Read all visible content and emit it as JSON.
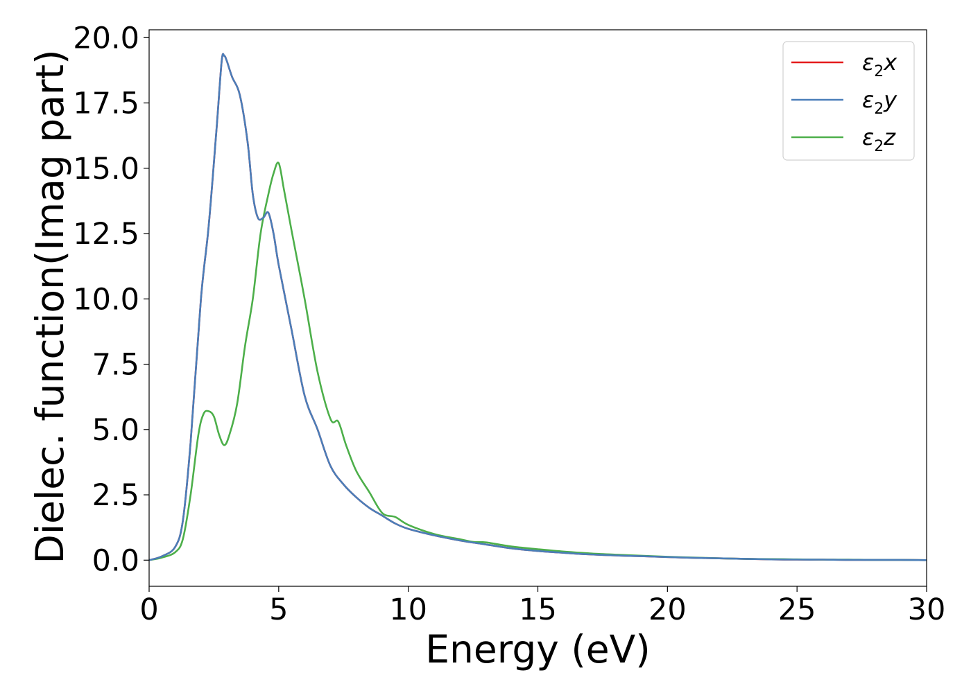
{
  "chart_data": {
    "type": "line",
    "title": "",
    "xlabel": "Energy (eV)",
    "ylabel": "Dielec. function(Imag part)",
    "xlim": [
      0,
      30
    ],
    "ylim": [
      -1,
      20.3
    ],
    "xticks": [
      0,
      5,
      10,
      15,
      20,
      25,
      30
    ],
    "xtick_labels": [
      "0",
      "5",
      "10",
      "15",
      "20",
      "25",
      "30"
    ],
    "yticks": [
      0,
      2.5,
      5,
      7.5,
      10,
      12.5,
      15,
      17.5,
      20
    ],
    "ytick_labels": [
      "0.0",
      "2.5",
      "5.0",
      "7.5",
      "10.0",
      "12.5",
      "15.0",
      "17.5",
      "20.0"
    ],
    "grid": false,
    "legend_position": "top-right",
    "series": [
      {
        "name": "ε2x",
        "legend_main": "ε",
        "legend_sub": "2",
        "legend_tail": "x",
        "color": "#e41a1c",
        "x": [
          0,
          0.5,
          1.0,
          1.3,
          1.6,
          2.0,
          2.3,
          2.6,
          2.8,
          2.9,
          3.0,
          3.2,
          3.5,
          3.8,
          4.0,
          4.2,
          4.4,
          4.6,
          4.8,
          5.0,
          5.5,
          6.0,
          6.5,
          7.0,
          7.5,
          8.0,
          8.5,
          9.0,
          9.5,
          10,
          11,
          12,
          13,
          14,
          15,
          16,
          17,
          18,
          19,
          20,
          21,
          22,
          23,
          24,
          25,
          26,
          27,
          28,
          29,
          30
        ],
        "values": [
          0,
          0.15,
          0.5,
          1.5,
          4.5,
          10.0,
          12.8,
          16.5,
          19.1,
          19.3,
          19.1,
          18.5,
          17.8,
          16.0,
          14.0,
          13.1,
          13.1,
          13.3,
          12.5,
          11.3,
          8.8,
          6.3,
          5.0,
          3.6,
          2.9,
          2.4,
          2.0,
          1.7,
          1.4,
          1.2,
          0.95,
          0.75,
          0.6,
          0.45,
          0.35,
          0.28,
          0.22,
          0.18,
          0.15,
          0.12,
          0.09,
          0.07,
          0.05,
          0.03,
          0.02,
          0.02,
          0.01,
          0.01,
          0.01,
          0.0
        ]
      },
      {
        "name": "ε2y",
        "legend_main": "ε",
        "legend_sub": "2",
        "legend_tail": "y",
        "color": "#4a7eb9",
        "x": [
          0,
          0.5,
          1.0,
          1.3,
          1.6,
          2.0,
          2.3,
          2.6,
          2.8,
          2.9,
          3.0,
          3.2,
          3.5,
          3.8,
          4.0,
          4.2,
          4.4,
          4.6,
          4.8,
          5.0,
          5.5,
          6.0,
          6.5,
          7.0,
          7.5,
          8.0,
          8.5,
          9.0,
          9.5,
          10,
          11,
          12,
          13,
          14,
          15,
          16,
          17,
          18,
          19,
          20,
          21,
          22,
          23,
          24,
          25,
          26,
          27,
          28,
          29,
          30
        ],
        "values": [
          0,
          0.15,
          0.5,
          1.5,
          4.5,
          10.0,
          12.8,
          16.5,
          19.1,
          19.3,
          19.1,
          18.5,
          17.8,
          16.0,
          14.0,
          13.1,
          13.1,
          13.3,
          12.5,
          11.3,
          8.8,
          6.3,
          5.0,
          3.6,
          2.9,
          2.4,
          2.0,
          1.7,
          1.4,
          1.2,
          0.95,
          0.75,
          0.6,
          0.45,
          0.35,
          0.28,
          0.22,
          0.18,
          0.15,
          0.12,
          0.09,
          0.07,
          0.05,
          0.03,
          0.02,
          0.02,
          0.01,
          0.01,
          0.01,
          0.0
        ]
      },
      {
        "name": "ε2z",
        "legend_main": "ε",
        "legend_sub": "2",
        "legend_tail": "z",
        "color": "#4daf4a",
        "x": [
          0,
          0.5,
          1.0,
          1.3,
          1.6,
          1.9,
          2.1,
          2.3,
          2.5,
          2.7,
          2.9,
          3.1,
          3.4,
          3.7,
          4.0,
          4.3,
          4.6,
          4.8,
          5.0,
          5.2,
          5.5,
          6.0,
          6.5,
          7.0,
          7.3,
          7.6,
          8.0,
          8.5,
          9.0,
          9.5,
          10,
          11,
          12,
          12.5,
          13,
          14,
          15,
          16,
          17,
          18,
          19,
          20,
          21,
          22,
          23,
          24,
          25,
          26,
          27,
          28,
          29,
          30
        ],
        "values": [
          0,
          0.1,
          0.3,
          0.8,
          2.5,
          4.8,
          5.6,
          5.7,
          5.5,
          4.8,
          4.4,
          4.8,
          6.0,
          8.2,
          10.0,
          12.5,
          14.0,
          14.8,
          15.2,
          14.2,
          12.6,
          10.0,
          7.2,
          5.4,
          5.3,
          4.4,
          3.4,
          2.6,
          1.8,
          1.65,
          1.35,
          1.0,
          0.8,
          0.7,
          0.68,
          0.52,
          0.42,
          0.33,
          0.26,
          0.21,
          0.17,
          0.13,
          0.1,
          0.07,
          0.05,
          0.04,
          0.03,
          0.02,
          0.02,
          0.01,
          0.01,
          0.0
        ]
      }
    ]
  }
}
